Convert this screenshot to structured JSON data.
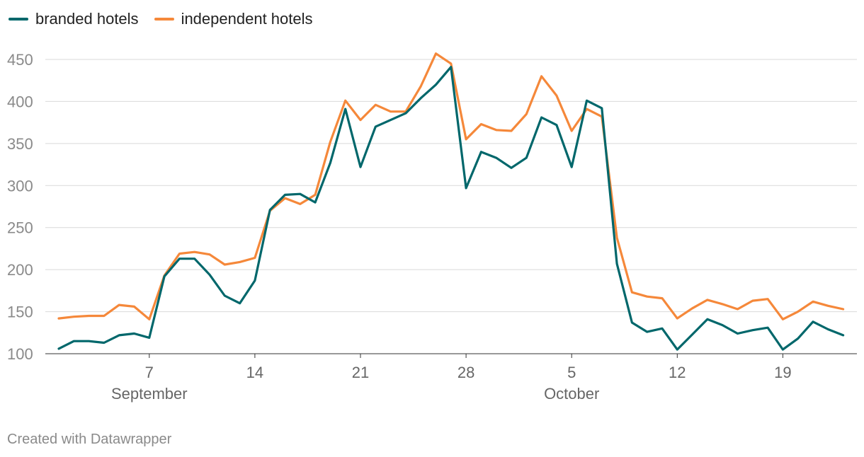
{
  "legend": [
    {
      "label": "branded hotels",
      "color": "#00676b"
    },
    {
      "label": "independent hotels",
      "color": "#f5883a"
    }
  ],
  "footer": "Created with Datawrapper",
  "chart_data": {
    "type": "line",
    "ylim": [
      100,
      450
    ],
    "y_ticks": [
      100,
      150,
      200,
      250,
      300,
      350,
      400,
      450
    ],
    "x_ticks": [
      {
        "day": 7,
        "label": "7",
        "sublabel": "September"
      },
      {
        "day": 14,
        "label": "14"
      },
      {
        "day": 21,
        "label": "21"
      },
      {
        "day": 28,
        "label": "28"
      },
      {
        "day": 35,
        "label": "5",
        "sublabel": "October"
      },
      {
        "day": 42,
        "label": "12"
      },
      {
        "day": 49,
        "label": "19"
      }
    ],
    "x_start_day": 1,
    "grid": true,
    "series": [
      {
        "name": "branded hotels",
        "color": "#00676b",
        "values": [
          106,
          115,
          115,
          113,
          122,
          124,
          119,
          192,
          213,
          213,
          194,
          169,
          160,
          187,
          271,
          289,
          290,
          280,
          327,
          391,
          322,
          370,
          378,
          386,
          404,
          420,
          441,
          297,
          340,
          333,
          321,
          333,
          381,
          372,
          322,
          401,
          392,
          207,
          137,
          126,
          130,
          105,
          123,
          141,
          134,
          124,
          128,
          131,
          105,
          118,
          138,
          129,
          122
        ]
      },
      {
        "name": "independent hotels",
        "color": "#f5883a",
        "values": [
          142,
          144,
          145,
          145,
          158,
          156,
          141,
          193,
          219,
          221,
          218,
          206,
          209,
          214,
          270,
          285,
          278,
          289,
          352,
          401,
          378,
          396,
          388,
          388,
          418,
          457,
          445,
          355,
          373,
          366,
          365,
          385,
          430,
          407,
          365,
          391,
          382,
          238,
          173,
          168,
          166,
          142,
          154,
          164,
          159,
          153,
          163,
          165,
          141,
          150,
          162,
          157,
          153
        ]
      }
    ]
  }
}
